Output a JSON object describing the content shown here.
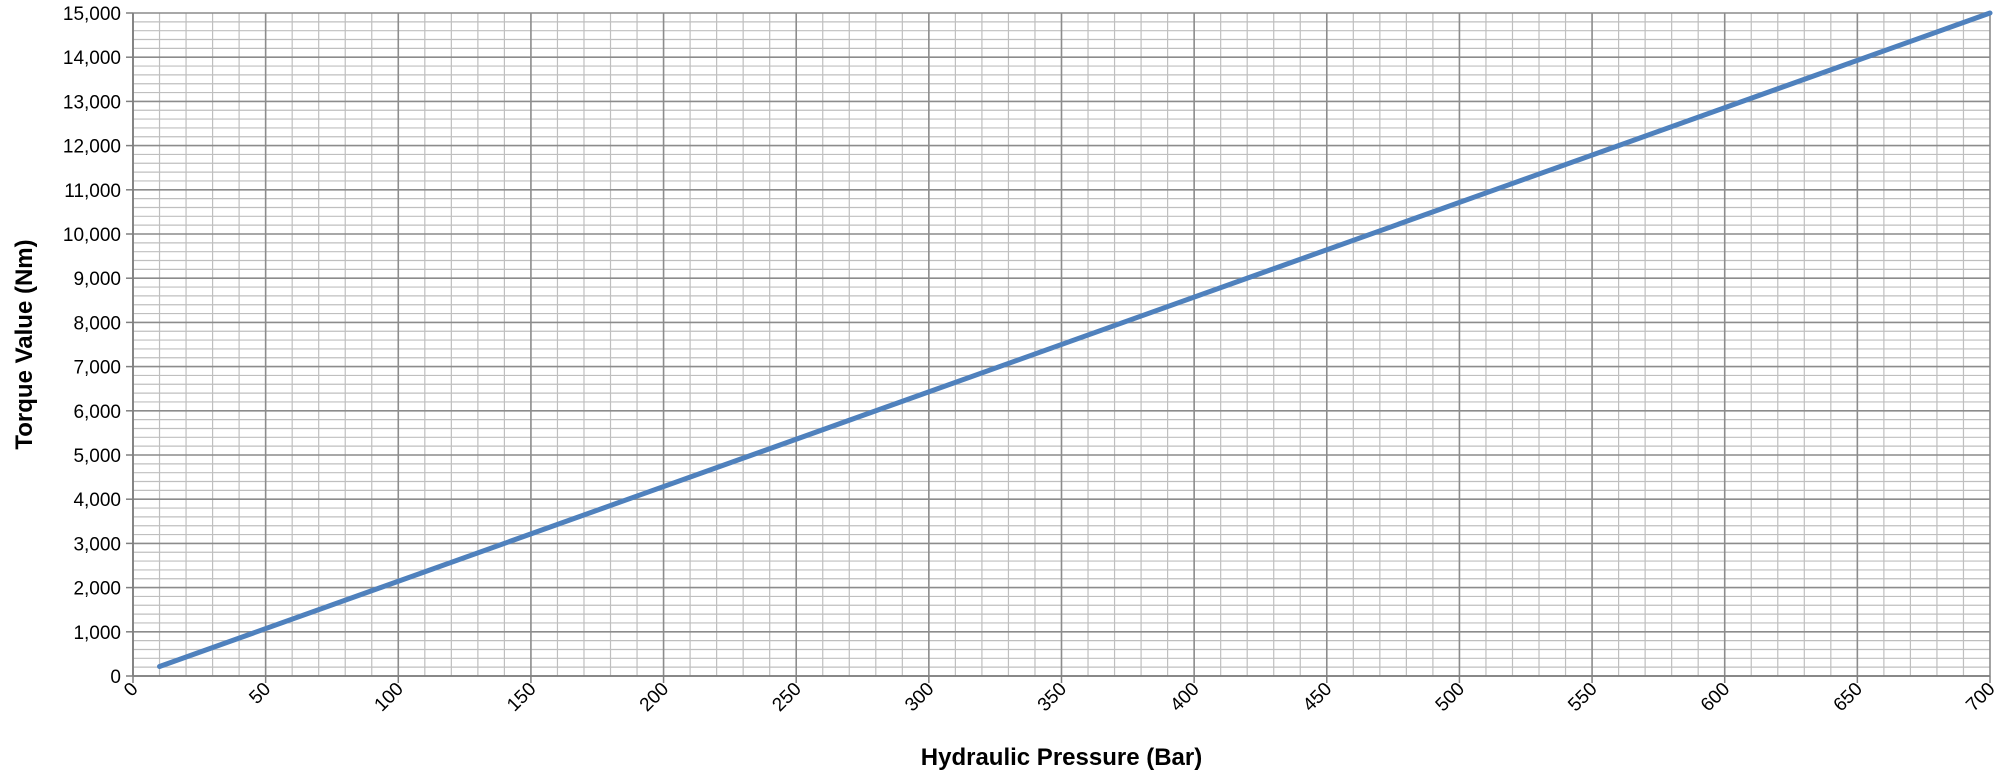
{
  "chart_data": {
    "type": "line",
    "title": "",
    "xlabel": "Hydraulic Pressure (Bar)",
    "ylabel": "Torque Value (Nm)",
    "xlim": [
      0,
      700
    ],
    "ylim": [
      0,
      15000
    ],
    "x_ticks": [
      0,
      50,
      100,
      150,
      200,
      250,
      300,
      350,
      400,
      450,
      500,
      550,
      600,
      650,
      700
    ],
    "x_tick_labels": [
      "0",
      "50",
      "100",
      "150",
      "200",
      "250",
      "300",
      "350",
      "400",
      "450",
      "500",
      "550",
      "600",
      "650",
      "700"
    ],
    "y_ticks": [
      0,
      1000,
      2000,
      3000,
      4000,
      5000,
      6000,
      7000,
      8000,
      9000,
      10000,
      11000,
      12000,
      13000,
      14000,
      15000
    ],
    "y_tick_labels": [
      "0",
      "1,000",
      "2,000",
      "3,000",
      "4,000",
      "5,000",
      "6,000",
      "7,000",
      "8,000",
      "9,000",
      "10,000",
      "11,000",
      "12,000",
      "13,000",
      "14,000",
      "15,000"
    ],
    "x_minor_step": 10,
    "y_minor_step": 200,
    "grid": true,
    "legend": "none",
    "series": [
      {
        "color": "#4f81bd",
        "x": [
          10,
          700
        ],
        "y": [
          215,
          15000
        ]
      }
    ],
    "colors": {
      "major_grid": "#8c8c8c",
      "minor_grid": "#bfbfbf",
      "axis": "#7f7f7f",
      "line": "#4f81bd"
    }
  }
}
